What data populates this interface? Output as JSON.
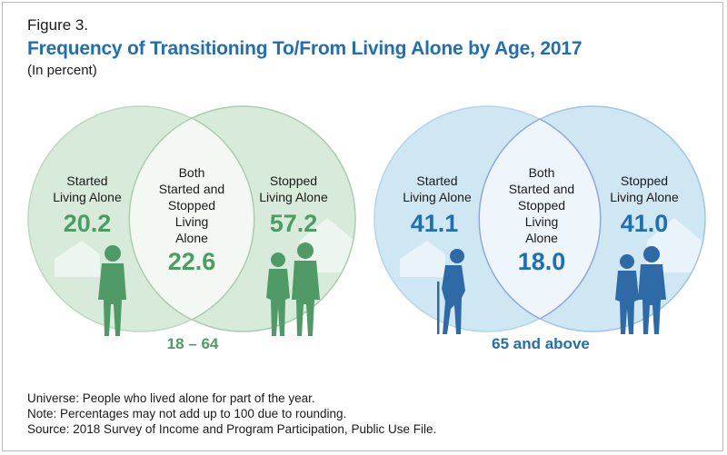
{
  "figure_label": "Figure 3.",
  "title": "Frequency of Transitioning To/From Living Alone by Age, 2017",
  "subtitle": "(In percent)",
  "colors": {
    "title_blue": "#1f6fb2",
    "green_text": "#4a9e63",
    "green_figure": "#4f9a66",
    "green_circle": "#d8ead9",
    "blue_text": "#1f6fb2",
    "blue_figure": "#2e6aa6",
    "blue_circle": "#cfe6f3"
  },
  "groups": [
    {
      "age_label": "18 – 64",
      "started_label": [
        "Started",
        "Living Alone"
      ],
      "started_value": "20.2",
      "both_label": [
        "Both",
        "Started and",
        "Stopped",
        "Living",
        "Alone"
      ],
      "both_value": "22.6",
      "stopped_label": [
        "Stopped",
        "Living Alone"
      ],
      "stopped_value": "57.2"
    },
    {
      "age_label": "65 and above",
      "started_label": [
        "Started",
        "Living Alone"
      ],
      "started_value": "41.1",
      "both_label": [
        "Both",
        "Started and",
        "Stopped",
        "Living",
        "Alone"
      ],
      "both_value": "18.0",
      "stopped_label": [
        "Stopped",
        "Living Alone"
      ],
      "stopped_value": "41.0"
    }
  ],
  "notes": [
    "Universe: People who lived alone for part of the year.",
    "Note: Percentages may not add up to 100 due to rounding.",
    "Source: 2018 Survey of Income and Program Participation, Public Use File."
  ]
}
